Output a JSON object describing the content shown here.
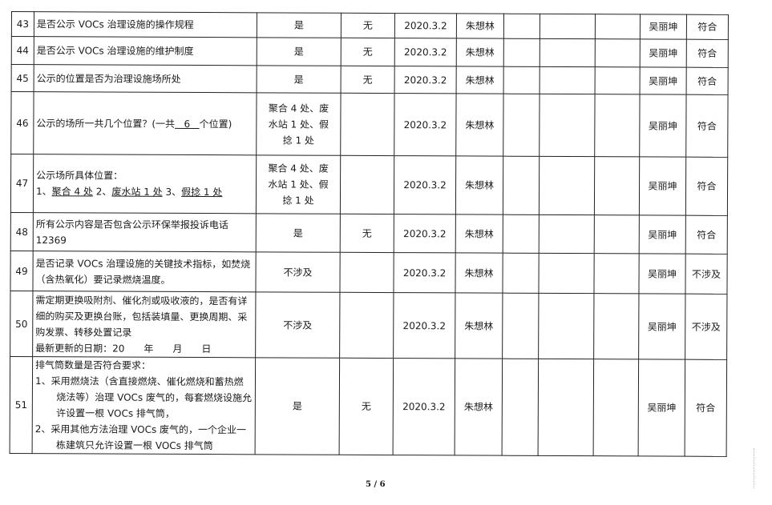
{
  "rows": [
    {
      "no": "43",
      "item": "是否公示 VOCs 治理设施的操作规程",
      "result": "是",
      "issue": "无",
      "date": "2020.3.2",
      "inspector": "朱想林",
      "reviewer": "吴丽坤",
      "conclusion": "符合"
    },
    {
      "no": "44",
      "item": "是否公示 VOCs 治理设施的维护制度",
      "result": "是",
      "issue": "无",
      "date": "2020.3.2",
      "inspector": "朱想林",
      "reviewer": "吴丽坤",
      "conclusion": "符合"
    },
    {
      "no": "45",
      "item": "公示的位置是否为治理设施场所处",
      "result": "是",
      "issue": "无",
      "date": "2020.3.2",
      "inspector": "朱想林",
      "reviewer": "吴丽坤",
      "conclusion": "符合"
    },
    {
      "no": "46",
      "item_a": "公示的场所一共几个位置？(一共",
      "item_b": "6",
      "item_c": "个位置)",
      "result": "聚合 4 处、废水站 1 处、假捻 1 处",
      "issue": "",
      "date": "2020.3.2",
      "inspector": "朱想林",
      "reviewer": "吴丽坤",
      "conclusion": "符合"
    },
    {
      "no": "47",
      "item_a": "公示场所具体位置：",
      "item_b": "1、",
      "item_c": "聚合 4 处",
      "item_d": "2、",
      "item_e": "废水站 1 处",
      "item_f": "3、",
      "item_g": "假捻 1 处",
      "result": "聚合 4 处、废水站 1 处、假捻 1 处",
      "issue": "",
      "date": "2020.3.2",
      "inspector": "朱想林",
      "reviewer": "吴丽坤",
      "conclusion": "符合"
    },
    {
      "no": "48",
      "item": "所有公示内容是否包含公示环保举报投诉电话 12369",
      "result": "是",
      "issue": "无",
      "date": "2020.3.2",
      "inspector": "朱想林",
      "reviewer": "吴丽坤",
      "conclusion": "符合"
    },
    {
      "no": "49",
      "item": "是否记录 VOCs 治理设施的关键技术指标，如焚烧（含热氧化）要记录燃烧温度。",
      "result": "不涉及",
      "issue": "",
      "date": "2020.3.2",
      "inspector": "朱想林",
      "reviewer": "吴丽坤",
      "conclusion": "不涉及"
    },
    {
      "no": "50",
      "item": "需定期更换吸附剂、催化剂或吸收液的，是否有详细的购买及更换台账，包括装填量、更换周期、采购发票、转移处置记录",
      "item_b": "最新更新的日期：20　　年　　月　　日",
      "result": "不涉及",
      "issue": "",
      "date": "2020.3.2",
      "inspector": "朱想林",
      "reviewer": "吴丽坤",
      "conclusion": "不涉及"
    },
    {
      "no": "51",
      "item": "排气筒数量是否符合要求：",
      "item_b": "1、采用燃烧法（含直接燃烧、催化燃烧和蓄热燃烧法等）治理 VOCs 废气的，每套燃烧设施允许设置一根 VOCs 排气筒，",
      "item_c": "2、采用其他方法治理 VOCs 废气的，一个企业一栋建筑只允许设置一根 VOCs 排气筒",
      "result": "是",
      "issue": "无",
      "date": "2020.3.2",
      "inspector": "朱想林",
      "reviewer": "吴丽坤",
      "conclusion": "符合"
    }
  ],
  "footer": {
    "page": "5 / 6"
  }
}
